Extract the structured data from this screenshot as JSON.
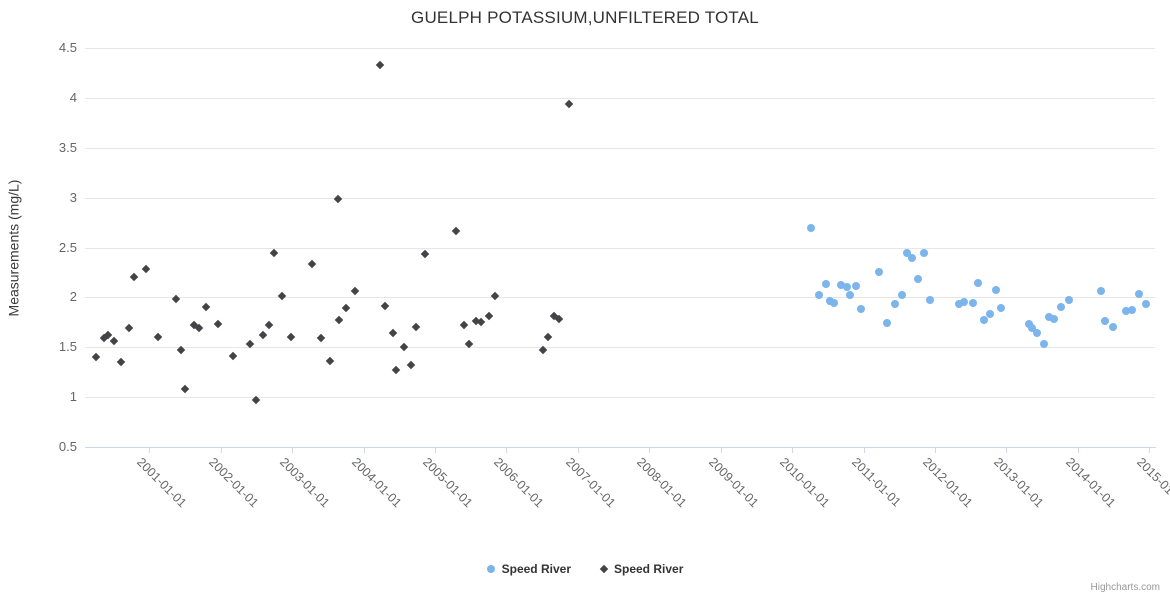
{
  "credits": {
    "label": "Highcharts.com"
  },
  "colors": {
    "series_blue": "#7cb5ec",
    "series_dark": "#434348",
    "gridline": "#e6e6e6",
    "axis_line": "#ccd6eb",
    "tick_text": "#666666",
    "title_text": "#333333"
  },
  "chart_data": {
    "type": "scatter",
    "title": "GUELPH POTASSIUM,UNFILTERED TOTAL",
    "xlabel": "",
    "ylabel": "Measurements (mg/L)",
    "ylim": [
      0.5,
      4.5
    ],
    "y_ticks": [
      "0.5",
      "1",
      "1.5",
      "2",
      "2.5",
      "3",
      "3.5",
      "4",
      "4.5"
    ],
    "x_ticks": [
      {
        "year": 2001,
        "label": "2001-01-01"
      },
      {
        "year": 2002,
        "label": "2002-01-01"
      },
      {
        "year": 2003,
        "label": "2003-01-01"
      },
      {
        "year": 2004,
        "label": "2004-01-01"
      },
      {
        "year": 2005,
        "label": "2005-01-01"
      },
      {
        "year": 2006,
        "label": "2006-01-01"
      },
      {
        "year": 2007,
        "label": "2007-01-01"
      },
      {
        "year": 2008,
        "label": "2008-01-01"
      },
      {
        "year": 2009,
        "label": "2009-01-01"
      },
      {
        "year": 2010,
        "label": "2010-01-01"
      },
      {
        "year": 2011,
        "label": "2011-01-01"
      },
      {
        "year": 2012,
        "label": "2012-01-01"
      },
      {
        "year": 2013,
        "label": "2013-01-01"
      },
      {
        "year": 2014,
        "label": "2014-01-01"
      },
      {
        "year": 2015,
        "label": "2015-01-01"
      }
    ],
    "xlim_years": [
      2000.1,
      2015.08
    ],
    "grid": true,
    "legend_position": "bottom-center",
    "series": [
      {
        "name": "Speed River",
        "marker": "circle",
        "color": "#7cb5ec",
        "points": [
          [
            2010.27,
            2.7
          ],
          [
            2010.37,
            2.02
          ],
          [
            2010.47,
            2.13
          ],
          [
            2010.53,
            1.96
          ],
          [
            2010.59,
            1.94
          ],
          [
            2010.69,
            2.12
          ],
          [
            2010.77,
            2.1
          ],
          [
            2010.81,
            2.02
          ],
          [
            2010.89,
            2.11
          ],
          [
            2010.96,
            1.88
          ],
          [
            2011.22,
            2.25
          ],
          [
            2011.33,
            1.74
          ],
          [
            2011.44,
            1.93
          ],
          [
            2011.54,
            2.02
          ],
          [
            2011.61,
            2.44
          ],
          [
            2011.68,
            2.39
          ],
          [
            2011.76,
            2.18
          ],
          [
            2011.85,
            2.44
          ],
          [
            2011.93,
            1.97
          ],
          [
            2012.34,
            1.93
          ],
          [
            2012.4,
            1.95
          ],
          [
            2012.53,
            1.94
          ],
          [
            2012.6,
            2.14
          ],
          [
            2012.69,
            1.77
          ],
          [
            2012.77,
            1.83
          ],
          [
            2012.85,
            2.07
          ],
          [
            2012.93,
            1.89
          ],
          [
            2013.32,
            1.73
          ],
          [
            2013.36,
            1.69
          ],
          [
            2013.43,
            1.64
          ],
          [
            2013.52,
            1.53
          ],
          [
            2013.59,
            1.8
          ],
          [
            2013.67,
            1.78
          ],
          [
            2013.76,
            1.9
          ],
          [
            2013.88,
            1.97
          ],
          [
            2014.33,
            2.06
          ],
          [
            2014.38,
            1.76
          ],
          [
            2014.49,
            1.7
          ],
          [
            2014.68,
            1.86
          ],
          [
            2014.76,
            1.87
          ],
          [
            2014.85,
            2.03
          ],
          [
            2014.95,
            1.93
          ]
        ]
      },
      {
        "name": "Speed River",
        "marker": "diamond",
        "color": "#434348",
        "points": [
          [
            2000.25,
            1.4
          ],
          [
            2000.36,
            1.59
          ],
          [
            2000.42,
            1.62
          ],
          [
            2000.5,
            1.56
          ],
          [
            2000.6,
            1.35
          ],
          [
            2000.71,
            1.69
          ],
          [
            2000.79,
            2.2
          ],
          [
            2000.96,
            2.28
          ],
          [
            2001.12,
            1.6
          ],
          [
            2001.38,
            1.98
          ],
          [
            2001.45,
            1.47
          ],
          [
            2001.5,
            1.08
          ],
          [
            2001.62,
            1.72
          ],
          [
            2001.7,
            1.69
          ],
          [
            2001.79,
            1.9
          ],
          [
            2001.96,
            1.73
          ],
          [
            2002.17,
            1.41
          ],
          [
            2002.41,
            1.53
          ],
          [
            2002.49,
            0.97
          ],
          [
            2002.59,
            1.62
          ],
          [
            2002.67,
            1.72
          ],
          [
            2002.75,
            2.44
          ],
          [
            2002.86,
            2.01
          ],
          [
            2002.99,
            1.6
          ],
          [
            2003.28,
            2.33
          ],
          [
            2003.41,
            1.59
          ],
          [
            2003.53,
            1.36
          ],
          [
            2003.64,
            2.99
          ],
          [
            2003.66,
            1.77
          ],
          [
            2003.76,
            1.89
          ],
          [
            2003.88,
            2.06
          ],
          [
            2004.23,
            4.33
          ],
          [
            2004.3,
            1.91
          ],
          [
            2004.41,
            1.64
          ],
          [
            2004.46,
            1.27
          ],
          [
            2004.56,
            1.5
          ],
          [
            2004.66,
            1.32
          ],
          [
            2004.73,
            1.7
          ],
          [
            2004.86,
            2.43
          ],
          [
            2005.29,
            2.67
          ],
          [
            2005.4,
            1.72
          ],
          [
            2005.48,
            1.53
          ],
          [
            2005.58,
            1.76
          ],
          [
            2005.65,
            1.75
          ],
          [
            2005.75,
            1.81
          ],
          [
            2005.84,
            2.01
          ],
          [
            2006.51,
            1.47
          ],
          [
            2006.58,
            1.6
          ],
          [
            2006.66,
            1.81
          ],
          [
            2006.73,
            1.78
          ],
          [
            2006.87,
            3.94
          ]
        ]
      }
    ]
  }
}
